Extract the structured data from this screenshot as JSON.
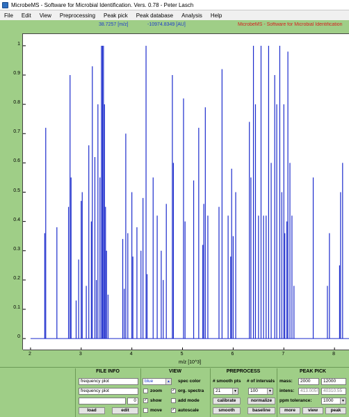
{
  "window": {
    "title": "MicrobeMS - Software for Microbial Identification. Vers. 0.78 - Peter Lasch"
  },
  "menu": [
    "File",
    "Edit",
    "View",
    "Preprocessing",
    "Peak pick",
    "Peak database",
    "Analysis",
    "Help"
  ],
  "info": {
    "mz_readout": "38.7257 [m/z]",
    "au_readout": "-10974.8349 [AU]",
    "brand": "MicrobeMS  -  Software for Microbial Identification"
  },
  "colors": {
    "line": "#1a2acc",
    "panel": "#9fce87",
    "brand": "#d81e1e"
  },
  "chart_data": {
    "type": "line",
    "xlabel": "m/z [10^3]",
    "ylabel": "",
    "xlim": [
      1.85,
      8.3
    ],
    "ylim": [
      -0.04,
      1.04
    ],
    "xticks": [
      "2",
      "3",
      "4",
      "5",
      "6",
      "7",
      "8"
    ],
    "yticks": [
      "0",
      "0.1",
      "0.2",
      "0.3",
      "0.4",
      "0.5",
      "0.6",
      "0.7",
      "0.8",
      "0.9",
      "1"
    ],
    "baseline_range": [
      2.0,
      8.3
    ],
    "peaks": [
      [
        2.28,
        0.36
      ],
      [
        2.3,
        0.72
      ],
      [
        2.52,
        0.38
      ],
      [
        2.75,
        0.45
      ],
      [
        2.78,
        0.9
      ],
      [
        2.8,
        0.55
      ],
      [
        2.9,
        0.13
      ],
      [
        2.95,
        0.27
      ],
      [
        3.0,
        0.47
      ],
      [
        3.02,
        0.5
      ],
      [
        3.1,
        0.18
      ],
      [
        3.15,
        0.66
      ],
      [
        3.2,
        0.4
      ],
      [
        3.22,
        0.93
      ],
      [
        3.27,
        0.62
      ],
      [
        3.3,
        0.2
      ],
      [
        3.33,
        0.8
      ],
      [
        3.37,
        0.55
      ],
      [
        3.4,
        1.0
      ],
      [
        3.42,
        1.0
      ],
      [
        3.44,
        1.0
      ],
      [
        3.46,
        0.8
      ],
      [
        3.48,
        0.45
      ],
      [
        3.5,
        0.3
      ],
      [
        3.53,
        0.15
      ],
      [
        3.82,
        0.34
      ],
      [
        3.85,
        0.17
      ],
      [
        3.88,
        0.7
      ],
      [
        3.92,
        0.36
      ],
      [
        4.0,
        0.5
      ],
      [
        4.02,
        0.28
      ],
      [
        4.1,
        0.38
      ],
      [
        4.18,
        0.3
      ],
      [
        4.22,
        0.48
      ],
      [
        4.28,
        1.0
      ],
      [
        4.3,
        0.22
      ],
      [
        4.42,
        0.55
      ],
      [
        4.5,
        0.42
      ],
      [
        4.58,
        0.3
      ],
      [
        4.62,
        0.2
      ],
      [
        4.68,
        0.46
      ],
      [
        4.8,
        0.9
      ],
      [
        4.82,
        0.6
      ],
      [
        5.02,
        0.82
      ],
      [
        5.05,
        0.4
      ],
      [
        5.22,
        0.54
      ],
      [
        5.32,
        0.72
      ],
      [
        5.4,
        0.32
      ],
      [
        5.42,
        0.46
      ],
      [
        5.45,
        0.79
      ],
      [
        5.5,
        0.42
      ],
      [
        5.72,
        0.45
      ],
      [
        5.78,
        0.92
      ],
      [
        5.9,
        0.42
      ],
      [
        5.95,
        0.28
      ],
      [
        5.97,
        0.58
      ],
      [
        6.0,
        0.35
      ],
      [
        6.05,
        0.5
      ],
      [
        6.32,
        0.74
      ],
      [
        6.35,
        0.55
      ],
      [
        6.4,
        1.0
      ],
      [
        6.44,
        0.8
      ],
      [
        6.5,
        0.42
      ],
      [
        6.55,
        1.0
      ],
      [
        6.6,
        0.42
      ],
      [
        6.65,
        0.42
      ],
      [
        6.7,
        1.0
      ],
      [
        6.75,
        0.6
      ],
      [
        6.82,
        0.9
      ],
      [
        6.86,
        0.8
      ],
      [
        6.92,
        1.0
      ],
      [
        6.96,
        0.5
      ],
      [
        7.0,
        0.8
      ],
      [
        7.02,
        0.36
      ],
      [
        7.06,
        0.4
      ],
      [
        7.08,
        0.98
      ],
      [
        7.12,
        0.6
      ],
      [
        7.16,
        0.42
      ],
      [
        7.2,
        0.18
      ],
      [
        7.58,
        0.55
      ],
      [
        7.86,
        0.18
      ],
      [
        7.9,
        0.36
      ],
      [
        8.1,
        0.25
      ],
      [
        8.12,
        0.5
      ],
      [
        8.16,
        0.6
      ]
    ]
  },
  "controls": {
    "file_info": {
      "header": "FILE INFO",
      "field1": "frequency plot",
      "field2": "frequency plot",
      "field3": "",
      "counter": "0",
      "load_label": "load",
      "edit_label": "edit"
    },
    "view": {
      "header": "VIEW",
      "color_value": "blue",
      "spec_color_label": "spec color",
      "zoom_label": "zoom",
      "org_spectra_label": "org. spectra",
      "show_label": "show",
      "add_mode_label": "add mode",
      "move_label": "move",
      "autoscale_label": "autoscale",
      "org_spectra_checked": "✓",
      "show_checked": "✓",
      "autoscale_checked": "✓"
    },
    "preprocess": {
      "header": "PREPROCESS",
      "smooth_pts_label": "# smooth pts",
      "intervals_label": "# of intervals",
      "smooth_pts_value": "21",
      "intervals_value": "100",
      "calibrate_label": "calibrate",
      "normalize_label": "normalize",
      "smooth_label": "smooth",
      "baseline_label": "baseline"
    },
    "peak_pick": {
      "header": "PEAK PICK",
      "mass_label": "mass:",
      "mass_from": "2000",
      "mass_to": "12000",
      "intens_label": "intens:",
      "intens_from": "413.005!",
      "intens_to": "40310.55",
      "ppm_label": "ppm tolerance:",
      "ppm_value": "1000",
      "more_label": "more",
      "view_label": "view",
      "peak_label": "peak"
    }
  }
}
